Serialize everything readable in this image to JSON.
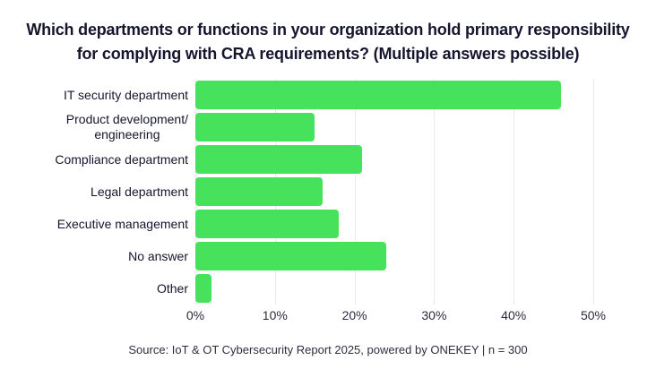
{
  "title": {
    "line1": "Which departments or functions in your organization hold primary responsibility",
    "line2": "for complying with CRA requirements? (Multiple answers possible)"
  },
  "chart_data": {
    "type": "bar",
    "orientation": "horizontal",
    "categories": [
      "IT security department",
      "Product development/\nengineering",
      "Compliance department",
      "Legal department",
      "Executive management",
      "No answer",
      "Other"
    ],
    "values": [
      46,
      15,
      21,
      16,
      18,
      24,
      2
    ],
    "unit": "%",
    "x_ticks": [
      "0%",
      "10%",
      "20%",
      "30%",
      "40%",
      "50%"
    ],
    "xlim": [
      0,
      50
    ],
    "grid": true,
    "legend": "none",
    "bar_color": "#47e25c"
  },
  "source": "Source: IoT & OT Cybersecurity Report 2025, powered by ONEKEY | n = 300",
  "colors": {
    "bar": "#47e25c",
    "text": "#15152e",
    "gridline": "#e9e9ed",
    "background": "#ffffff"
  }
}
